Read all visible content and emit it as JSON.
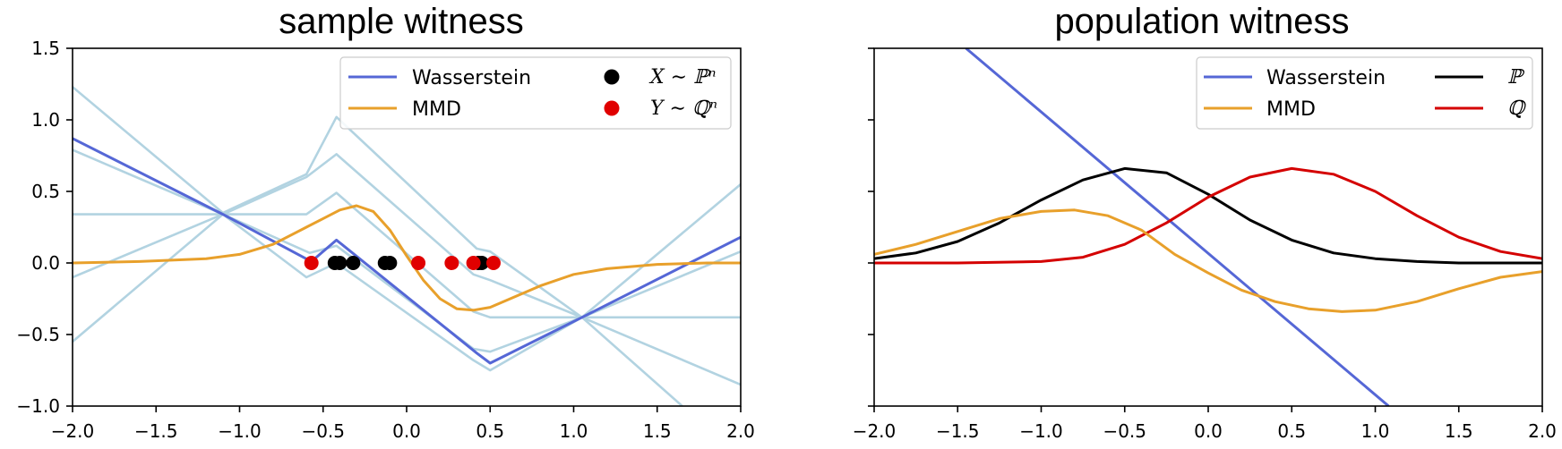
{
  "chart_data": [
    {
      "type": "line",
      "title": "sample witness",
      "xlim": [
        -2.0,
        2.0
      ],
      "ylim": [
        -1.0,
        1.5
      ],
      "xticks": [
        "−2.0",
        "−1.5",
        "−1.0",
        "−0.5",
        "0.0",
        "0.5",
        "1.0",
        "1.5",
        "2.0"
      ],
      "yticks": [
        "−1.0",
        "−0.5",
        "0.0",
        "0.5",
        "1.0",
        "1.5"
      ],
      "xtick_values": [
        -2.0,
        -1.5,
        -1.0,
        -0.5,
        0.0,
        0.5,
        1.0,
        1.5,
        2.0
      ],
      "ytick_values": [
        -1.0,
        -0.5,
        0.0,
        0.5,
        1.0,
        1.5
      ],
      "legend": {
        "position": "upper-right",
        "entries": [
          {
            "label": "Wasserstein",
            "kind": "line",
            "color": "#5567d6"
          },
          {
            "label": "MMD",
            "kind": "line",
            "color": "#e8a02b"
          },
          {
            "label": "X ∼ ℙⁿ",
            "kind": "marker",
            "color": "#000000"
          },
          {
            "label": "Y ∼ ℚⁿ",
            "kind": "marker",
            "color": "#e00000"
          }
        ]
      },
      "series": [
        {
          "name": "faint-1",
          "color": "#b2d3e1",
          "x": [
            -2.0,
            -1.1,
            -0.6,
            -0.42,
            0.42,
            0.5,
            1.05,
            2.0
          ],
          "y": [
            1.23,
            0.35,
            0.62,
            1.02,
            0.1,
            0.08,
            -0.38,
            -0.85
          ]
        },
        {
          "name": "faint-2",
          "color": "#b2d3e1",
          "x": [
            -2.0,
            -1.1,
            -0.6,
            -0.42,
            0.4,
            0.5,
            1.05,
            2.0
          ],
          "y": [
            0.79,
            0.34,
            0.6,
            0.76,
            -0.08,
            -0.12,
            -0.38,
            0.55
          ]
        },
        {
          "name": "faint-3",
          "color": "#b2d3e1",
          "x": [
            -2.0,
            -1.1,
            -0.6,
            -0.42,
            0.4,
            0.5,
            2.0
          ],
          "y": [
            0.34,
            0.34,
            0.34,
            0.49,
            -0.34,
            -0.38,
            -0.38
          ]
        },
        {
          "name": "faint-4",
          "color": "#b2d3e1",
          "x": [
            -2.0,
            -1.1,
            -0.58,
            -0.42,
            0.4,
            0.5,
            1.05,
            2.0
          ],
          "y": [
            -0.1,
            0.34,
            0.07,
            0.12,
            -0.6,
            -0.62,
            -0.38,
            0.08
          ]
        },
        {
          "name": "faint-5",
          "color": "#b2d3e1",
          "x": [
            -2.0,
            -1.1,
            -0.6,
            -0.42,
            0.4,
            0.5,
            1.05,
            1.65
          ],
          "y": [
            -0.55,
            0.34,
            -0.1,
            0.0,
            -0.68,
            -0.75,
            -0.38,
            -1.0
          ]
        },
        {
          "name": "Wasserstein",
          "color": "#5567d6",
          "x": [
            -2.0,
            -1.1,
            -0.57,
            -0.42,
            0.42,
            0.5,
            1.05,
            2.0
          ],
          "y": [
            0.87,
            0.34,
            0.01,
            0.16,
            -0.63,
            -0.7,
            -0.38,
            0.18
          ]
        },
        {
          "name": "MMD",
          "color": "#e8a02b",
          "x": [
            -2.0,
            -1.6,
            -1.2,
            -1.0,
            -0.8,
            -0.6,
            -0.5,
            -0.4,
            -0.3,
            -0.2,
            -0.1,
            0.0,
            0.1,
            0.2,
            0.3,
            0.4,
            0.5,
            0.6,
            0.8,
            1.0,
            1.2,
            1.5,
            1.8,
            2.0
          ],
          "y": [
            0.0,
            0.01,
            0.03,
            0.06,
            0.13,
            0.25,
            0.31,
            0.37,
            0.4,
            0.36,
            0.23,
            0.05,
            -0.12,
            -0.25,
            -0.32,
            -0.33,
            -0.31,
            -0.26,
            -0.16,
            -0.08,
            -0.04,
            -0.01,
            0.0,
            0.0
          ]
        }
      ],
      "points_X": [
        -0.43,
        -0.4,
        -0.32,
        -0.13,
        -0.1,
        0.43,
        0.45
      ],
      "points_Y": [
        -0.57,
        0.07,
        0.27,
        0.4,
        0.52
      ]
    },
    {
      "type": "line",
      "title": "population witness",
      "xlim": [
        -2.0,
        2.0
      ],
      "ylim": [
        -1.0,
        1.5
      ],
      "xticks": [
        "−2.0",
        "−1.5",
        "−1.0",
        "−0.5",
        "0.0",
        "0.5",
        "1.0",
        "1.5",
        "2.0"
      ],
      "xtick_values": [
        -2.0,
        -1.5,
        -1.0,
        -0.5,
        0.0,
        0.5,
        1.0,
        1.5,
        2.0
      ],
      "ytick_values": [
        -1.0,
        -0.5,
        0.0,
        0.5,
        1.0,
        1.5
      ],
      "legend": {
        "position": "upper-right",
        "entries": [
          {
            "label": "Wasserstein",
            "kind": "line",
            "color": "#5567d6"
          },
          {
            "label": "MMD",
            "kind": "line",
            "color": "#e8a02b"
          },
          {
            "label": "ℙ",
            "kind": "line",
            "color": "#000000"
          },
          {
            "label": "ℚ",
            "kind": "line",
            "color": "#d40000"
          }
        ]
      },
      "series": [
        {
          "name": "Wasserstein",
          "color": "#5567d6",
          "x": [
            -1.45,
            1.08
          ],
          "y": [
            1.5,
            -1.0
          ]
        },
        {
          "name": "ℙ",
          "color": "#000000",
          "x": [
            -2.0,
            -1.75,
            -1.5,
            -1.25,
            -1.0,
            -0.75,
            -0.5,
            -0.25,
            0.0,
            0.25,
            0.5,
            0.75,
            1.0,
            1.25,
            1.5,
            1.75,
            2.0
          ],
          "y": [
            0.03,
            0.07,
            0.15,
            0.28,
            0.44,
            0.58,
            0.66,
            0.63,
            0.48,
            0.3,
            0.16,
            0.07,
            0.03,
            0.01,
            0.0,
            0.0,
            0.0
          ]
        },
        {
          "name": "ℚ",
          "color": "#d40000",
          "x": [
            -2.0,
            -1.5,
            -1.0,
            -0.75,
            -0.5,
            -0.25,
            0.0,
            0.25,
            0.5,
            0.75,
            1.0,
            1.25,
            1.5,
            1.75,
            2.0
          ],
          "y": [
            0.0,
            0.0,
            0.01,
            0.04,
            0.13,
            0.28,
            0.46,
            0.6,
            0.66,
            0.62,
            0.5,
            0.33,
            0.18,
            0.08,
            0.03
          ]
        },
        {
          "name": "MMD",
          "color": "#e8a02b",
          "x": [
            -2.0,
            -1.75,
            -1.5,
            -1.25,
            -1.0,
            -0.8,
            -0.6,
            -0.4,
            -0.2,
            0.0,
            0.2,
            0.4,
            0.6,
            0.8,
            1.0,
            1.25,
            1.5,
            1.75,
            2.0
          ],
          "y": [
            0.06,
            0.13,
            0.22,
            0.31,
            0.36,
            0.37,
            0.33,
            0.23,
            0.06,
            -0.07,
            -0.19,
            -0.27,
            -0.32,
            -0.34,
            -0.33,
            -0.27,
            -0.18,
            -0.1,
            -0.06
          ]
        }
      ]
    }
  ]
}
